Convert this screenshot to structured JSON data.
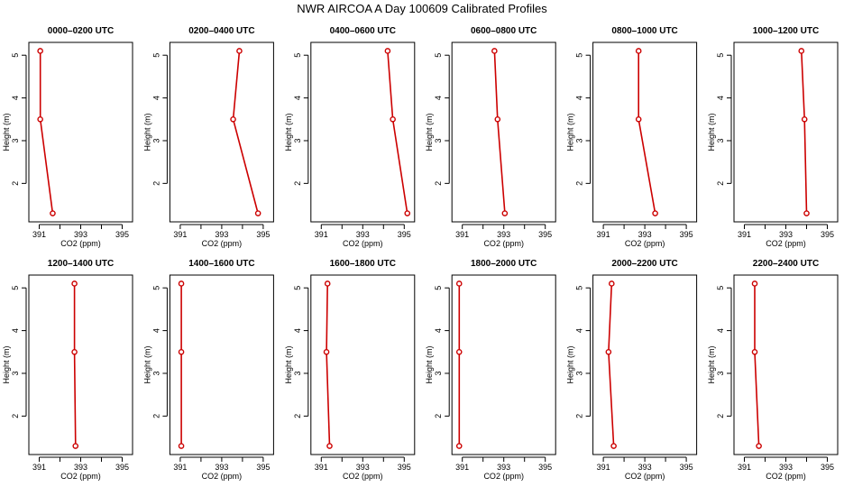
{
  "figure": {
    "title": "NWR AIRCOA A  Day 100609  Calibrated Profiles"
  },
  "chart_data": [
    {
      "type": "line",
      "title": "0000–0200 UTC",
      "xlabel": "CO2 (ppm)",
      "ylabel": "Height (m)",
      "xlim": [
        390.5,
        395.5
      ],
      "ylim": [
        1.1,
        5.3
      ],
      "xticks": [
        391,
        393,
        395
      ],
      "yticks": [
        2,
        3,
        4,
        5
      ],
      "x": [
        391.05,
        391.05,
        391.65
      ],
      "y": [
        5.1,
        3.5,
        1.3
      ],
      "color": "#cc0000"
    },
    {
      "type": "line",
      "title": "0200–0400 UTC",
      "xlabel": "CO2 (ppm)",
      "ylabel": "Height (m)",
      "xlim": [
        390.5,
        395.5
      ],
      "ylim": [
        1.1,
        5.3
      ],
      "xticks": [
        391,
        393,
        395
      ],
      "yticks": [
        2,
        3,
        4,
        5
      ],
      "x": [
        393.85,
        393.55,
        394.75
      ],
      "y": [
        5.1,
        3.5,
        1.3
      ],
      "color": "#cc0000"
    },
    {
      "type": "line",
      "title": "0400–0600 UTC",
      "xlabel": "CO2 (ppm)",
      "ylabel": "Height (m)",
      "xlim": [
        390.5,
        395.5
      ],
      "ylim": [
        1.1,
        5.3
      ],
      "xticks": [
        391,
        393,
        395
      ],
      "yticks": [
        2,
        3,
        4,
        5
      ],
      "x": [
        394.2,
        394.45,
        395.15
      ],
      "y": [
        5.1,
        3.5,
        1.3
      ],
      "color": "#cc0000"
    },
    {
      "type": "line",
      "title": "0600–0800 UTC",
      "xlabel": "CO2 (ppm)",
      "ylabel": "Height (m)",
      "xlim": [
        390.5,
        395.5
      ],
      "ylim": [
        1.1,
        5.3
      ],
      "xticks": [
        391,
        393,
        395
      ],
      "yticks": [
        2,
        3,
        4,
        5
      ],
      "x": [
        392.55,
        392.7,
        393.05
      ],
      "y": [
        5.1,
        3.5,
        1.3
      ],
      "color": "#cc0000"
    },
    {
      "type": "line",
      "title": "0800–1000 UTC",
      "xlabel": "CO2 (ppm)",
      "ylabel": "Height (m)",
      "xlim": [
        390.5,
        395.5
      ],
      "ylim": [
        1.1,
        5.3
      ],
      "xticks": [
        391,
        393,
        395
      ],
      "yticks": [
        2,
        3,
        4,
        5
      ],
      "x": [
        392.7,
        392.7,
        393.5
      ],
      "y": [
        5.1,
        3.5,
        1.3
      ],
      "color": "#cc0000"
    },
    {
      "type": "line",
      "title": "1000–1200 UTC",
      "xlabel": "CO2 (ppm)",
      "ylabel": "Height (m)",
      "xlim": [
        390.5,
        395.5
      ],
      "ylim": [
        1.1,
        5.3
      ],
      "xticks": [
        391,
        393,
        395
      ],
      "yticks": [
        2,
        3,
        4,
        5
      ],
      "x": [
        393.75,
        393.9,
        394.0
      ],
      "y": [
        5.1,
        3.5,
        1.3
      ],
      "color": "#cc0000"
    },
    {
      "type": "line",
      "title": "1200–1400 UTC",
      "xlabel": "CO2 (ppm)",
      "ylabel": "Height (m)",
      "xlim": [
        390.5,
        395.5
      ],
      "ylim": [
        1.1,
        5.3
      ],
      "xticks": [
        391,
        393,
        395
      ],
      "yticks": [
        2,
        3,
        4,
        5
      ],
      "x": [
        392.7,
        392.7,
        392.75
      ],
      "y": [
        5.1,
        3.5,
        1.3
      ],
      "color": "#cc0000"
    },
    {
      "type": "line",
      "title": "1400–1600 UTC",
      "xlabel": "CO2 (ppm)",
      "ylabel": "Height (m)",
      "xlim": [
        390.5,
        395.5
      ],
      "ylim": [
        1.1,
        5.3
      ],
      "xticks": [
        391,
        393,
        395
      ],
      "yticks": [
        2,
        3,
        4,
        5
      ],
      "x": [
        391.05,
        391.05,
        391.05
      ],
      "y": [
        5.1,
        3.5,
        1.3
      ],
      "color": "#cc0000"
    },
    {
      "type": "line",
      "title": "1600–1800 UTC",
      "xlabel": "CO2 (ppm)",
      "ylabel": "Height (m)",
      "xlim": [
        390.5,
        395.5
      ],
      "ylim": [
        1.1,
        5.3
      ],
      "xticks": [
        391,
        393,
        395
      ],
      "yticks": [
        2,
        3,
        4,
        5
      ],
      "x": [
        391.3,
        391.25,
        391.4
      ],
      "y": [
        5.1,
        3.5,
        1.3
      ],
      "color": "#cc0000"
    },
    {
      "type": "line",
      "title": "1800–2000 UTC",
      "xlabel": "CO2 (ppm)",
      "ylabel": "Height (m)",
      "xlim": [
        390.5,
        395.5
      ],
      "ylim": [
        1.1,
        5.3
      ],
      "xticks": [
        391,
        393,
        395
      ],
      "yticks": [
        2,
        3,
        4,
        5
      ],
      "x": [
        390.85,
        390.85,
        390.85
      ],
      "y": [
        5.1,
        3.5,
        1.3
      ],
      "color": "#cc0000"
    },
    {
      "type": "line",
      "title": "2000–2200 UTC",
      "xlabel": "CO2 (ppm)",
      "ylabel": "Height (m)",
      "xlim": [
        390.5,
        395.5
      ],
      "ylim": [
        1.1,
        5.3
      ],
      "xticks": [
        391,
        393,
        395
      ],
      "yticks": [
        2,
        3,
        4,
        5
      ],
      "x": [
        391.4,
        391.25,
        391.5
      ],
      "y": [
        5.1,
        3.5,
        1.3
      ],
      "color": "#cc0000"
    },
    {
      "type": "line",
      "title": "2200–2400 UTC",
      "xlabel": "CO2 (ppm)",
      "ylabel": "Height (m)",
      "xlim": [
        390.5,
        395.5
      ],
      "ylim": [
        1.1,
        5.3
      ],
      "xticks": [
        391,
        393,
        395
      ],
      "yticks": [
        2,
        3,
        4,
        5
      ],
      "x": [
        391.5,
        391.5,
        391.7
      ],
      "y": [
        5.1,
        3.5,
        1.3
      ],
      "color": "#cc0000"
    }
  ]
}
